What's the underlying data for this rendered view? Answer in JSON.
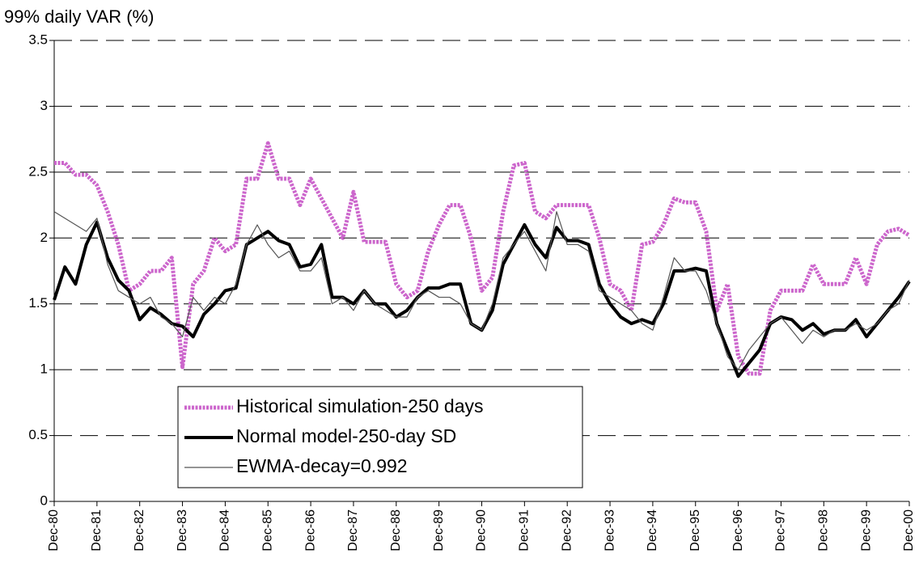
{
  "chart_data": {
    "type": "line",
    "title": "99% daily VAR (%)",
    "x": [
      1981,
      1981.25,
      1981.5,
      1981.75,
      1982,
      1982.25,
      1982.5,
      1982.75,
      1983,
      1983.25,
      1983.5,
      1983.75,
      1984,
      1984.25,
      1984.5,
      1984.75,
      1985,
      1985.25,
      1985.5,
      1985.75,
      1986,
      1986.25,
      1986.5,
      1986.75,
      1987,
      1987.25,
      1987.5,
      1987.75,
      1988,
      1988.25,
      1988.5,
      1988.75,
      1989,
      1989.25,
      1989.5,
      1989.75,
      1990,
      1990.25,
      1990.5,
      1990.75,
      1991,
      1991.25,
      1991.5,
      1991.75,
      1992,
      1992.25,
      1992.5,
      1992.75,
      1993,
      1993.25,
      1993.5,
      1993.75,
      1994,
      1994.25,
      1994.5,
      1994.75,
      1995,
      1995.25,
      1995.5,
      1995.75,
      1996,
      1996.25,
      1996.5,
      1996.75,
      1997,
      1997.25,
      1997.5,
      1997.75,
      1998,
      1998.25,
      1998.5,
      1998.75,
      1999,
      1999.25,
      1999.5,
      1999.75,
      2000,
      2000.25,
      2000.5,
      2000.75,
      2001
    ],
    "series": [
      {
        "name": "Historical simulation-250 days",
        "color": "#cc66cc",
        "width": 5,
        "values": [
          2.57,
          2.57,
          2.48,
          2.48,
          2.4,
          2.2,
          1.95,
          1.6,
          1.65,
          1.75,
          1.75,
          1.85,
          1.02,
          1.65,
          1.75,
          2.0,
          1.9,
          1.95,
          2.45,
          2.45,
          2.72,
          2.45,
          2.45,
          2.25,
          2.45,
          2.3,
          2.15,
          2.0,
          2.35,
          1.97,
          1.97,
          1.97,
          1.65,
          1.55,
          1.6,
          1.9,
          2.1,
          2.25,
          2.25,
          2.0,
          1.6,
          1.7,
          2.2,
          2.55,
          2.57,
          2.2,
          2.15,
          2.25,
          2.25,
          2.25,
          2.25,
          2.0,
          1.65,
          1.6,
          1.45,
          1.95,
          1.97,
          2.1,
          2.3,
          2.27,
          2.27,
          2.05,
          1.45,
          1.65,
          1.1,
          0.97,
          0.97,
          1.45,
          1.6,
          1.6,
          1.6,
          1.8,
          1.65,
          1.65,
          1.65,
          1.85,
          1.65,
          1.95,
          2.05,
          2.07,
          2.02
        ]
      },
      {
        "name": "Normal model-250-day SD",
        "color": "#000000",
        "width": 4,
        "values": [
          1.53,
          1.78,
          1.65,
          1.95,
          2.12,
          1.85,
          1.68,
          1.6,
          1.38,
          1.47,
          1.42,
          1.35,
          1.33,
          1.25,
          1.42,
          1.5,
          1.6,
          1.62,
          1.95,
          2.0,
          2.05,
          1.98,
          1.95,
          1.78,
          1.8,
          1.95,
          1.55,
          1.55,
          1.5,
          1.6,
          1.5,
          1.5,
          1.4,
          1.45,
          1.55,
          1.62,
          1.62,
          1.65,
          1.65,
          1.35,
          1.3,
          1.45,
          1.8,
          1.95,
          2.1,
          1.95,
          1.85,
          2.08,
          1.98,
          1.98,
          1.95,
          1.65,
          1.5,
          1.4,
          1.35,
          1.38,
          1.35,
          1.5,
          1.75,
          1.75,
          1.77,
          1.75,
          1.35,
          1.15,
          0.95,
          1.05,
          1.15,
          1.35,
          1.4,
          1.38,
          1.3,
          1.35,
          1.27,
          1.3,
          1.3,
          1.38,
          1.25,
          1.35,
          1.45,
          1.55,
          1.67
        ]
      },
      {
        "name": "EWMA-decay=0.992",
        "color": "#555555",
        "width": 1.2,
        "values": [
          2.2,
          2.15,
          2.1,
          2.05,
          2.15,
          1.8,
          1.6,
          1.55,
          1.5,
          1.55,
          1.4,
          1.35,
          1.25,
          1.55,
          1.45,
          1.55,
          1.5,
          1.65,
          1.95,
          2.1,
          1.95,
          1.85,
          1.9,
          1.75,
          1.75,
          1.85,
          1.5,
          1.55,
          1.45,
          1.6,
          1.5,
          1.45,
          1.4,
          1.4,
          1.55,
          1.6,
          1.55,
          1.55,
          1.5,
          1.35,
          1.3,
          1.5,
          1.85,
          1.95,
          2.05,
          1.9,
          1.75,
          2.2,
          1.95,
          1.95,
          1.9,
          1.6,
          1.55,
          1.5,
          1.45,
          1.35,
          1.3,
          1.55,
          1.85,
          1.75,
          1.75,
          1.6,
          1.35,
          1.1,
          1.0,
          1.15,
          1.25,
          1.35,
          1.4,
          1.3,
          1.2,
          1.3,
          1.25,
          1.3,
          1.3,
          1.35,
          1.3,
          1.35,
          1.45,
          1.5,
          1.68
        ]
      }
    ],
    "xlim": [
      1981,
      2001
    ],
    "xticks": [
      {
        "value": 1981,
        "label": "Dec-80"
      },
      {
        "value": 1982,
        "label": "Dec-81"
      },
      {
        "value": 1983,
        "label": "Dec-82"
      },
      {
        "value": 1984,
        "label": "Dec-83"
      },
      {
        "value": 1985,
        "label": "Dec-84"
      },
      {
        "value": 1986,
        "label": "Dec-85"
      },
      {
        "value": 1987,
        "label": "Dec-86"
      },
      {
        "value": 1988,
        "label": "Dec-87"
      },
      {
        "value": 1989,
        "label": "Dec-88"
      },
      {
        "value": 1990,
        "label": "Dec-89"
      },
      {
        "value": 1991,
        "label": "Dec-90"
      },
      {
        "value": 1992,
        "label": "Dec-91"
      },
      {
        "value": 1993,
        "label": "Dec-92"
      },
      {
        "value": 1994,
        "label": "Dec-93"
      },
      {
        "value": 1995,
        "label": "Dec-94"
      },
      {
        "value": 1996,
        "label": "Dec-95"
      },
      {
        "value": 1997,
        "label": "Dec-96"
      },
      {
        "value": 1998,
        "label": "Dec-97"
      },
      {
        "value": 1999,
        "label": "Dec-98"
      },
      {
        "value": 2000,
        "label": "Dec-99"
      },
      {
        "value": 2001,
        "label": "Dec-00"
      }
    ],
    "ylim": [
      0,
      3.5
    ],
    "yticks": [
      0,
      0.5,
      1,
      1.5,
      2,
      2.5,
      3,
      3.5
    ],
    "grid": true,
    "legend": "bottom-left"
  }
}
